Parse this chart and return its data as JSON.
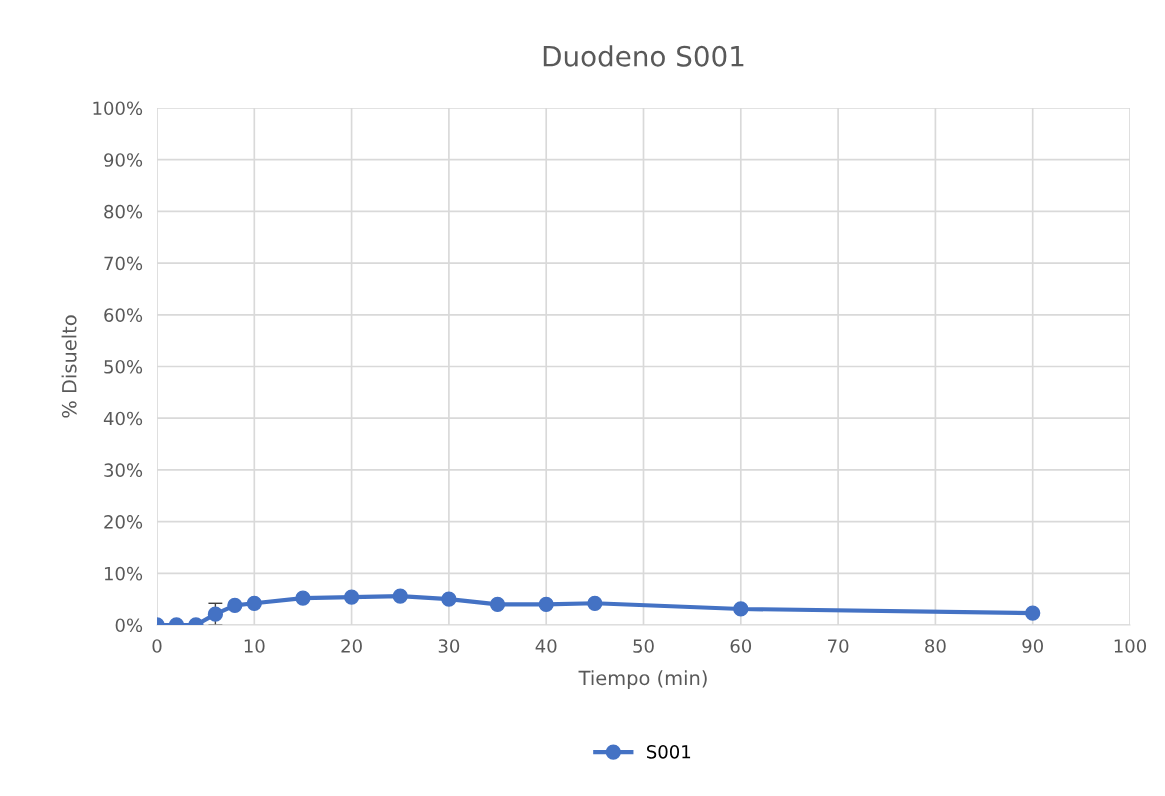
{
  "chart_data": {
    "type": "line",
    "title": "Duodeno S001",
    "xlabel": "Tiempo (min)",
    "ylabel": "% Disuelto",
    "x": [
      0,
      2,
      4,
      6,
      8,
      10,
      15,
      20,
      25,
      30,
      35,
      40,
      45,
      60,
      90
    ],
    "series": [
      {
        "name": "S001",
        "color": "#4472c4",
        "values": [
          0,
          0,
          0,
          2.1,
          3.8,
          4.2,
          5.2,
          5.4,
          5.6,
          5.0,
          4.0,
          4.0,
          4.2,
          3.1,
          2.3
        ],
        "errors": [
          null,
          null,
          null,
          2.1,
          null,
          null,
          null,
          null,
          null,
          null,
          null,
          null,
          null,
          null,
          null
        ]
      }
    ],
    "xlim": [
      0,
      100
    ],
    "xticks": [
      0,
      10,
      20,
      30,
      40,
      50,
      60,
      70,
      80,
      90,
      100
    ],
    "ylim": [
      0,
      100
    ],
    "yticks": [
      {
        "value": 0,
        "label": "0%"
      },
      {
        "value": 10,
        "label": "10%"
      },
      {
        "value": 20,
        "label": "20%"
      },
      {
        "value": 30,
        "label": "30%"
      },
      {
        "value": 40,
        "label": "40%"
      },
      {
        "value": 50,
        "label": "50%"
      },
      {
        "value": 60,
        "label": "60%"
      },
      {
        "value": 70,
        "label": "70%"
      },
      {
        "value": 80,
        "label": "80%"
      },
      {
        "value": 90,
        "label": "90%"
      },
      {
        "value": 100,
        "label": "100%"
      }
    ],
    "grid": true,
    "legend": "bottom",
    "marker": "circle",
    "line_style": "solid"
  }
}
